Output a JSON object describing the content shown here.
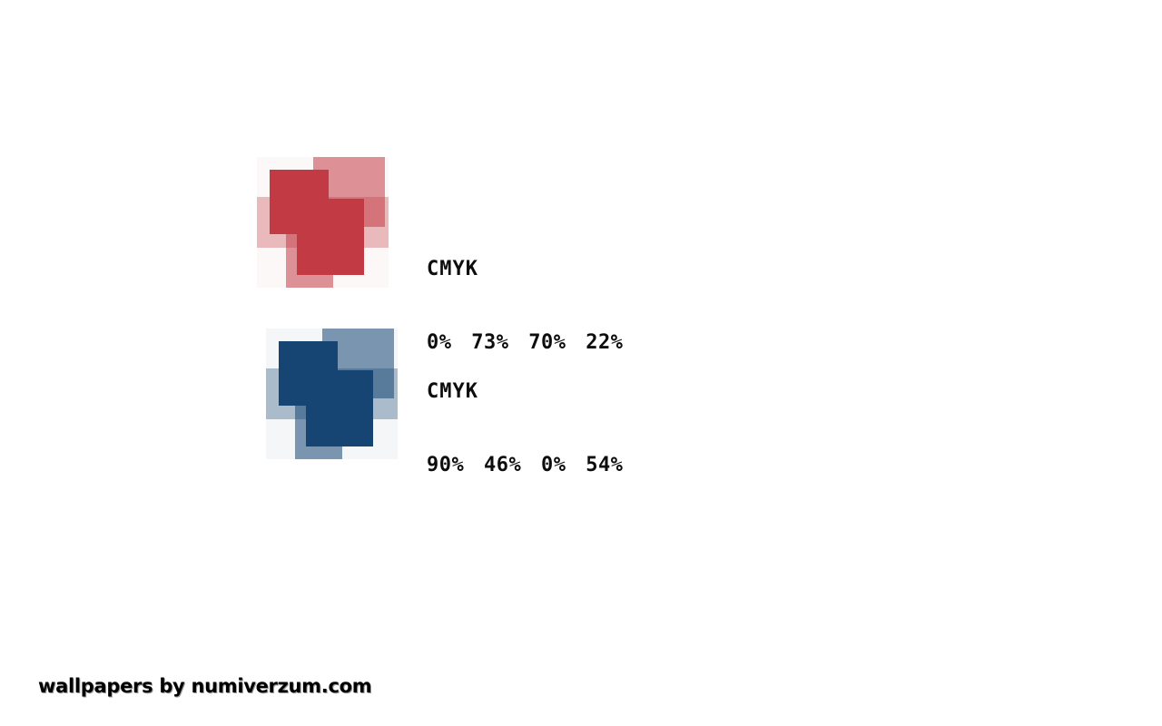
{
  "page": {
    "background_color": "#ffffff"
  },
  "swatches": [
    {
      "id": "red",
      "label": "CMYK",
      "values_display": "0% 73% 70% 22%",
      "cmyk": {
        "c": "0%",
        "m": "73%",
        "y": "70%",
        "k": "22%"
      },
      "colors": {
        "solid": "#c23a43",
        "medium": "rgba(194, 58, 67, 0.55)",
        "light": "rgba(194, 58, 67, 0.33)",
        "halo": "#fdf8f8"
      }
    },
    {
      "id": "blue",
      "label": "CMYK",
      "values_display": "90% 46% 0% 54%",
      "cmyk": {
        "c": "90%",
        "m": "46%",
        "y": "0%",
        "k": "54%"
      },
      "colors": {
        "solid": "#164573",
        "medium": "rgba(22, 69, 115, 0.55)",
        "light": "rgba(22, 69, 115, 0.33)",
        "halo": "#f4f6f8"
      }
    }
  ],
  "footer": {
    "watermark": "wallpapers by numiverzum.com"
  }
}
